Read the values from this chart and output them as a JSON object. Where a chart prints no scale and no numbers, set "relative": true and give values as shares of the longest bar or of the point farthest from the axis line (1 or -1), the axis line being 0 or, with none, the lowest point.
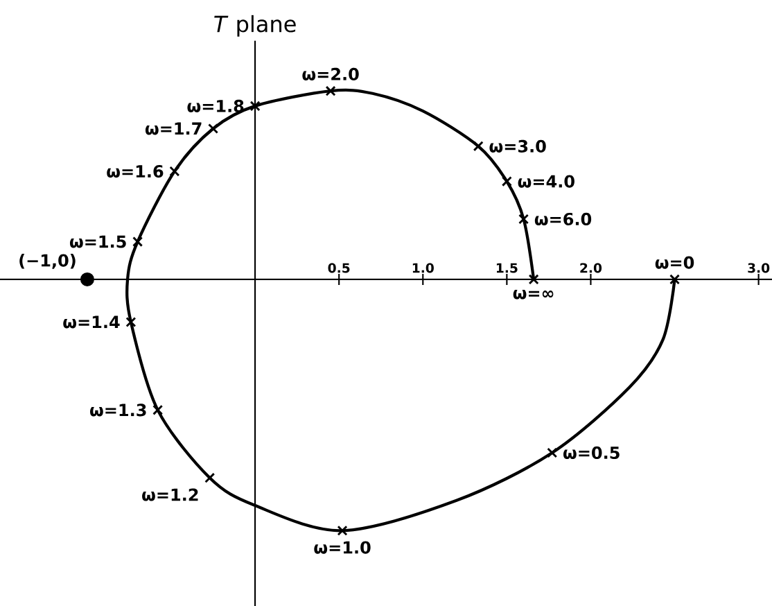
{
  "chart_data": {
    "type": "line",
    "title": "*T* plane",
    "relative": true,
    "tick_labels": "x",
    "xlim": [
      -1.52,
      3.08
    ],
    "xticks": [
      0.5,
      {
        "value": 1,
        "label": "1.0"
      },
      1.5,
      {
        "value": 2,
        "label": "2.0"
      },
      {
        "value": 3,
        "label": "3.0"
      }
    ],
    "series": [
      {
        "type": "line",
        "color": "#000000",
        "marker": "none",
        "x": [
          2.5,
          2.43,
          2.23,
          1.77,
          1.2,
          0.52,
          0,
          -0.27,
          -0.58,
          -0.74,
          -0.76,
          -0.7,
          -0.48,
          -0.25,
          0,
          0.45,
          0.7,
          1.0,
          1.33,
          1.5,
          1.6,
          1.66
        ],
        "values": [
          0,
          -0.24,
          -0.43,
          -0.69,
          -0.88,
          -1,
          -0.9,
          -0.79,
          -0.52,
          -0.17,
          0,
          0.15,
          0.43,
          0.6,
          0.69,
          0.75,
          0.74,
          0.67,
          0.53,
          0.39,
          0.24,
          0
        ]
      },
      {
        "type": "scatter",
        "color": "#000000",
        "marker": "cross",
        "x": [
          2.5,
          1.77,
          0.52,
          -0.27,
          -0.58,
          -0.74,
          -0.7,
          -0.48,
          -0.25,
          0,
          0.45,
          1.33,
          1.5,
          1.6,
          1.66
        ],
        "values": [
          0,
          -0.69,
          -1,
          -0.79,
          -0.52,
          -0.17,
          0.15,
          0.43,
          0.6,
          0.69,
          0.75,
          0.53,
          0.39,
          0.24,
          0
        ]
      },
      {
        "type": "scatter",
        "color": "#000000",
        "marker": "circle",
        "x": [
          -1
        ],
        "values": [
          0
        ]
      }
    ],
    "annotations": [
      {
        "text": "(−1,0)",
        "x": -1,
        "y": 0
      },
      {
        "text": "ω=0",
        "x": 2.5,
        "y": 0
      },
      {
        "text": "ω=0.5",
        "x": 1.77,
        "y": -0.69
      },
      {
        "text": "ω=1.0",
        "x": 0.52,
        "y": -1
      },
      {
        "text": "ω=1.2",
        "x": -0.27,
        "y": -0.79
      },
      {
        "text": "ω=1.3",
        "x": -0.58,
        "y": -0.52
      },
      {
        "text": "ω=1.4",
        "x": -0.74,
        "y": -0.17
      },
      {
        "text": "ω=1.5",
        "x": -0.7,
        "y": 0.15
      },
      {
        "text": "ω=1.6",
        "x": -0.48,
        "y": 0.43
      },
      {
        "text": "ω=1.7",
        "x": -0.25,
        "y": 0.6
      },
      {
        "text": "ω=1.8",
        "x": 0,
        "y": 0.69
      },
      {
        "text": "ω=2.0",
        "x": 0.45,
        "y": 0.75
      },
      {
        "text": "ω=3.0",
        "x": 1.33,
        "y": 0.53
      },
      {
        "text": "ω=4.0",
        "x": 1.5,
        "y": 0.39
      },
      {
        "text": "ω=6.0",
        "x": 1.6,
        "y": 0.24
      },
      {
        "text": "ω=∞",
        "x": 1.66,
        "y": 0
      }
    ]
  }
}
